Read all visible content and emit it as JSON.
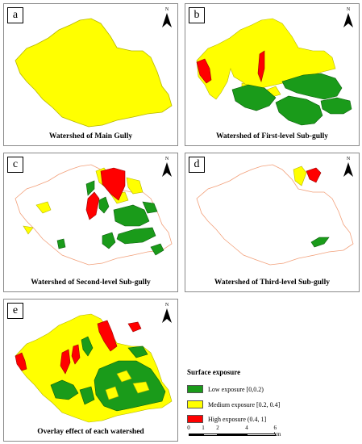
{
  "panels": [
    {
      "letter": "a",
      "caption": "Watershed of Main Gully"
    },
    {
      "letter": "b",
      "caption": "Watershed of First-level Sub-gully"
    },
    {
      "letter": "c",
      "caption": "Watershed of Second-level Sub-gully"
    },
    {
      "letter": "d",
      "caption": "Watershed of Third-level Sub-gully"
    },
    {
      "letter": "e",
      "caption": "Overlay effect of each watershed"
    }
  ],
  "north_label": "N",
  "legend": {
    "title": "Surface exposure",
    "items": [
      {
        "label": "Low exposure [0,0.2)",
        "color": "#1a9b1a"
      },
      {
        "label": "Medium exposure [0.2, 0.4]",
        "color": "#ffff00"
      },
      {
        "label": "High exposure (0.4, 1]",
        "color": "#ff0000"
      }
    ]
  },
  "scale": {
    "ticks": [
      "0",
      "1",
      "2",
      "4",
      "6 km"
    ]
  },
  "colors": {
    "outline": "#f2a07a",
    "watershed_fill": "#ffff00",
    "stroke": "#b5b500"
  }
}
